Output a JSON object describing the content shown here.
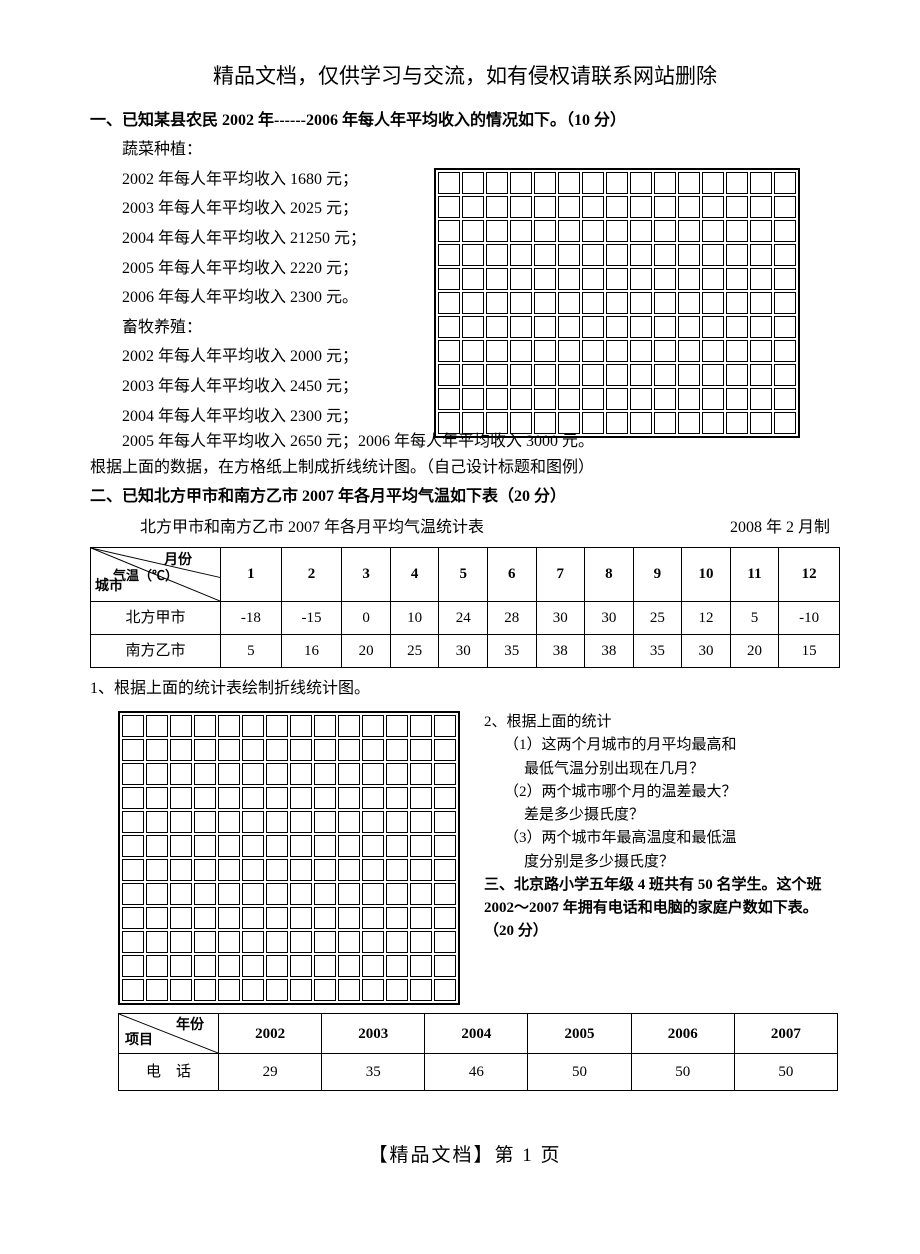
{
  "header_notice": "精品文档，仅供学习与交流，如有侵权请联系网站删除",
  "section1": {
    "title": "一、已知某县农民 2002 年------2006 年每人年平均收入的情况如下。（10 分）",
    "group1_label": "蔬菜种植：",
    "veg": [
      "2002 年每人年平均收入 1680 元；",
      "2003 年每人年平均收入 2025 元；",
      "2004 年每人年平均收入 21250 元；",
      "2005 年每人年平均收入 2220 元；",
      "2006 年每人年平均收入 2300 元。"
    ],
    "group2_label": "畜牧养殖：",
    "live": [
      "2002 年每人年平均收入 2000 元；",
      "2003 年每人年平均收入 2450 元；",
      "2004 年每人年平均收入 2300 元；"
    ],
    "live_last": "2005 年每人年平均收入 2650 元；2006 年每人年平均收入 3000 元。",
    "instruction": "根据上面的数据，在方格纸上制成折线统计图。（自己设计标题和图例）",
    "grid": {
      "rows": 11,
      "cols": 15
    }
  },
  "section2": {
    "title": "二、已知北方甲市和南方乙市 2007 年各月平均气温如下表（20 分）",
    "caption": "北方甲市和南方乙市 2007 年各月平均气温统计表",
    "date": "2008 年 2 月制",
    "diag": {
      "top": "月份",
      "mid": "气温（℃）",
      "bot": "城市"
    },
    "months": [
      "1",
      "2",
      "3",
      "4",
      "5",
      "6",
      "7",
      "8",
      "9",
      "10",
      "11",
      "12"
    ],
    "rows": [
      {
        "name": "北方甲市",
        "vals": [
          "-18",
          "-15",
          "0",
          "10",
          "24",
          "28",
          "30",
          "30",
          "25",
          "12",
          "5",
          "-10"
        ]
      },
      {
        "name": "南方乙市",
        "vals": [
          "5",
          "16",
          "20",
          "25",
          "30",
          "35",
          "38",
          "38",
          "35",
          "30",
          "20",
          "15"
        ]
      }
    ],
    "q1": "1、根据上面的统计表绘制折线统计图。",
    "grid": {
      "rows": 12,
      "cols": 14
    },
    "q2": {
      "lead": "2、根据上面的统计",
      "a_l1": "（1）这两个月城市的月平均最高和",
      "a_l2": "最低气温分别出现在几月？",
      "b_l1": "（2）两个城市哪个月的温差最大？",
      "b_l2": "差是多少摄氏度？",
      "c_l1": "（3）两个城市年最高温度和最低温",
      "c_l2": "度分别是多少摄氏度？"
    }
  },
  "section3": {
    "title_l1": "三、北京路小学五年级 4 班共有 50 名学生。这个班",
    "title_l2": "2002～2007 年拥有电话和电脑的家庭户数如下表。",
    "title_l3": "（20 分）",
    "diag": {
      "top": "年份",
      "bot": "项目"
    },
    "years": [
      "2002",
      "2003",
      "2004",
      "2005",
      "2006",
      "2007"
    ],
    "row": {
      "name": "电　话",
      "vals": [
        "29",
        "35",
        "46",
        "50",
        "50",
        "50"
      ]
    }
  },
  "footer": "【精品文档】第 1 页"
}
